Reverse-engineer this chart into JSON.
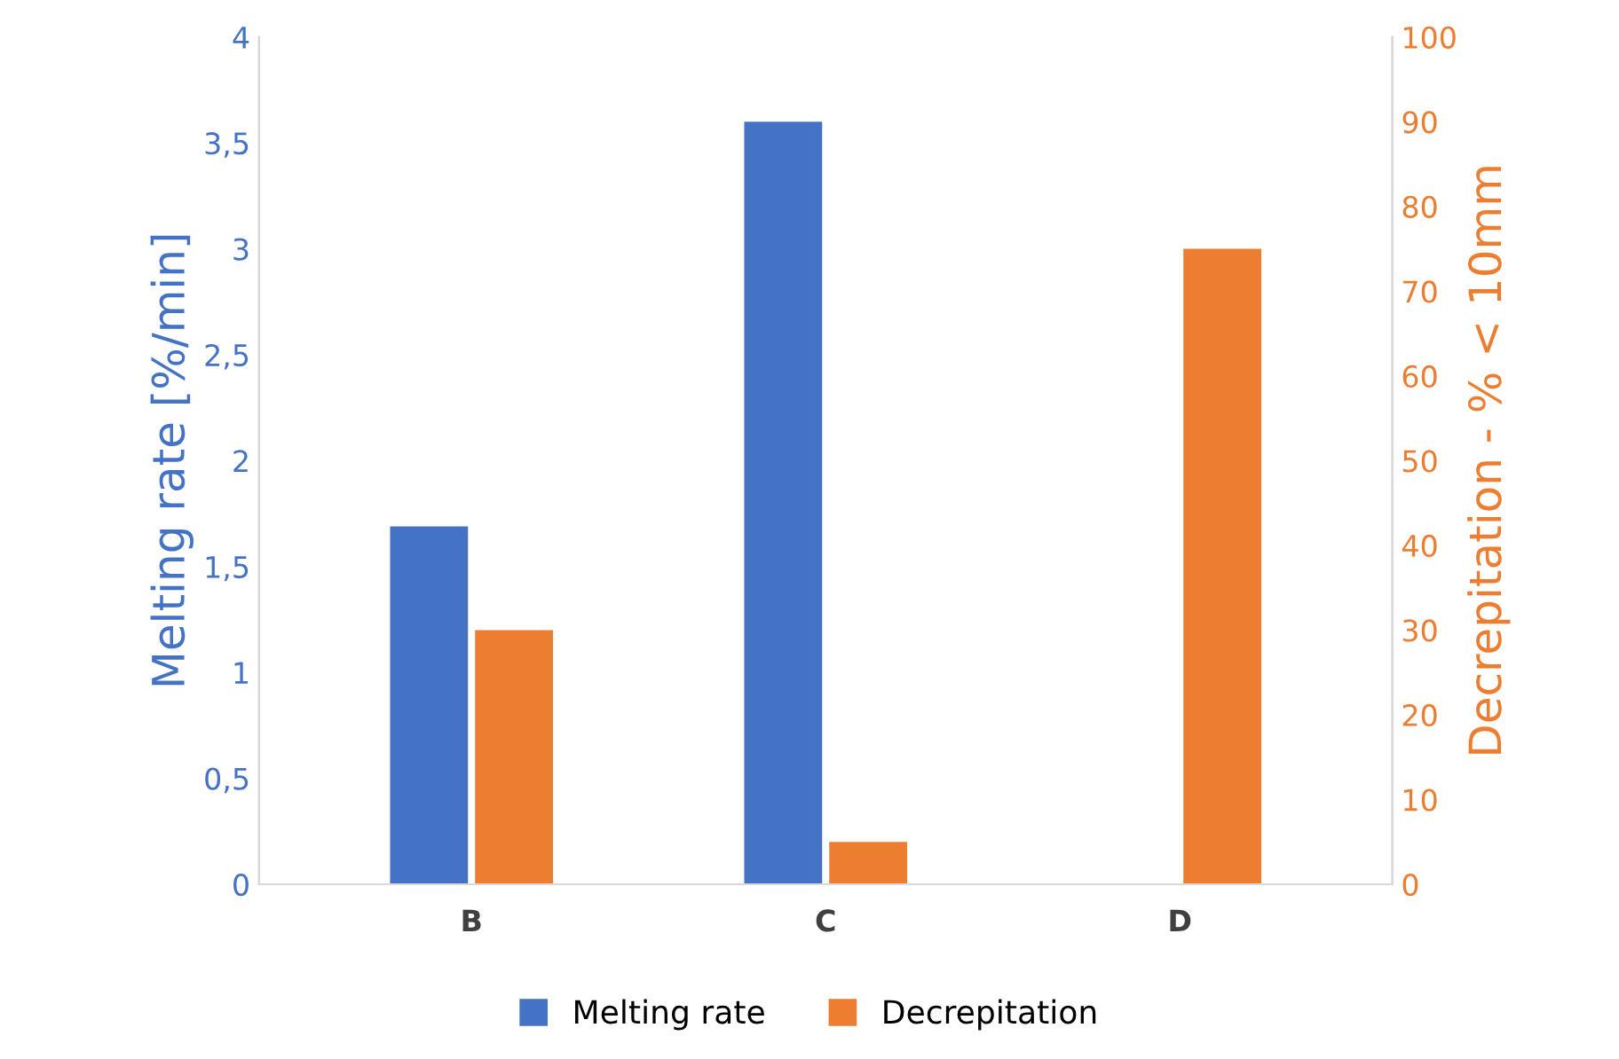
{
  "chart_data": {
    "type": "bar",
    "ylabel": "Melting rate [%/min]",
    "y2label": "Decrepitation - % < 10mm",
    "categories": [
      "B",
      "C",
      "D"
    ],
    "series": [
      {
        "name": "Melting rate",
        "color": "#4472c4",
        "values": [
          1.69,
          3.6,
          null
        ]
      },
      {
        "name": "Decrepitation",
        "color": "#ed7d31",
        "values": [
          30,
          5,
          75
        ],
        "axis": "y2"
      }
    ],
    "ylim": [
      0,
      4
    ],
    "yticks": [
      0,
      {
        "value": 0.5,
        "label": "0,5"
      },
      1,
      {
        "value": 1.5,
        "label": "1,5"
      },
      2,
      {
        "value": 2.5,
        "label": "2,5"
      },
      3,
      {
        "value": 3.5,
        "label": "3,5"
      },
      4
    ],
    "y2lim": [
      0,
      100
    ],
    "y2ticks": [
      0,
      10,
      20,
      30,
      40,
      50,
      60,
      70,
      80,
      90,
      100
    ],
    "grid": false,
    "legend": "bottom"
  }
}
